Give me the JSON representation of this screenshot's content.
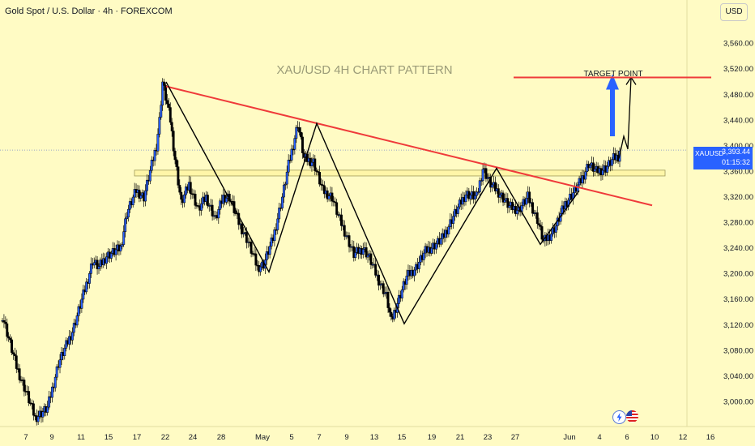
{
  "header": {
    "title": "Gold Spot / U.S. Dollar · 4h · FOREXCOM"
  },
  "currency_button": "USD",
  "annotations": {
    "watermark": "XAU/USD 4H CHART PATTERN",
    "target": "TARGET POINT"
  },
  "price_badge": {
    "symbol": "XAUUSD",
    "price": "3,393.44",
    "countdown": "01:15:32"
  },
  "colors": {
    "background": "#fffbc4",
    "candle": "#2962ff",
    "candle_outline": "#000000",
    "trendline": "#ef3a3a",
    "pattern": "#000000",
    "arrow": "#2962ff"
  },
  "icons": [
    "lightning-icon",
    "us-flag-icon"
  ],
  "chart_data": {
    "type": "candlestick",
    "title": "XAU/USD 4H CHART PATTERN",
    "ylim": [
      2960,
      3590
    ],
    "yticks": [
      "3,560.00",
      "3,520.00",
      "3,480.00",
      "3,440.00",
      "3,400.00",
      "3,360.00",
      "3,320.00",
      "3,280.00",
      "3,240.00",
      "3,200.00",
      "3,160.00",
      "3,120.00",
      "3,080.00",
      "3,040.00",
      "3,000.00"
    ],
    "xticks": [
      "7",
      "9",
      "11",
      "15",
      "17",
      "22",
      "24",
      "28",
      "May",
      "5",
      "7",
      "9",
      "13",
      "15",
      "19",
      "21",
      "23",
      "27",
      "Jun",
      "4",
      "6",
      "10",
      "12",
      "16"
    ],
    "key_points": [
      {
        "label": "Apr 7 low",
        "value": 2975
      },
      {
        "label": "Apr 22 high",
        "value": 3500
      },
      {
        "label": "Apr 29 low",
        "value": 3203
      },
      {
        "label": "May 6 high",
        "value": 3435
      },
      {
        "label": "May 15 low",
        "value": 3122
      },
      {
        "label": "May 23 high",
        "value": 3365
      },
      {
        "label": "May 29 low",
        "value": 3246
      },
      {
        "label": "Last",
        "value": 3393.44
      }
    ],
    "resistance_trendline": [
      {
        "date": "Apr 22",
        "value": 3493
      },
      {
        "date": "Jun 9",
        "value": 3307
      }
    ],
    "support_zone": [
      3353,
      3362
    ],
    "target_line": 3507,
    "last_price": 3393.44,
    "grid": false
  }
}
